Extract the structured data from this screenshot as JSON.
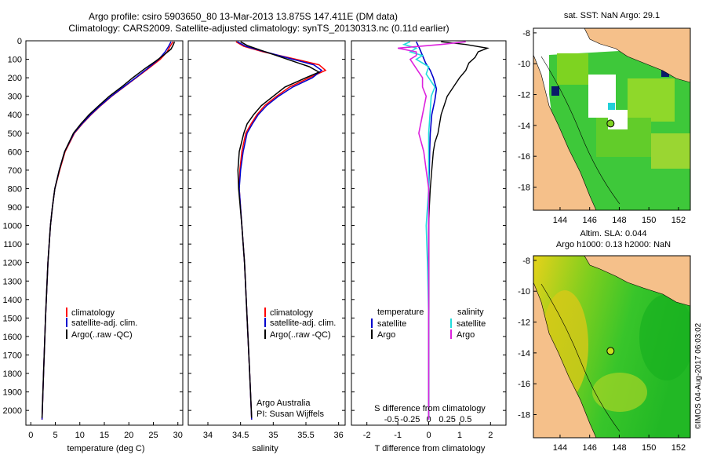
{
  "header": {
    "title": "Argo profile: csiro 5903650_80 13-Mar-2013 13.875S 147.411E (DM data)",
    "subtitle": "Climatology: CARS2009. Satellite-adjusted climatology: synTS_20130313.nc (0.11d earlier)"
  },
  "colors": {
    "climatology": "#ff0000",
    "satellite": "#0000cc",
    "argo": "#000000",
    "salinity_sat": "#22dddd",
    "salinity_argo": "#dd22dd",
    "land": "#f5c08a"
  },
  "depth_axis": {
    "ticks": [
      "0",
      "100",
      "200",
      "300",
      "400",
      "500",
      "600",
      "700",
      "800",
      "900",
      "1000",
      "1100",
      "1200",
      "1300",
      "1400",
      "1500",
      "1600",
      "1700",
      "1800",
      "1900",
      "2000"
    ],
    "max": 2080
  },
  "chart_data": [
    {
      "type": "line",
      "id": "temperature",
      "xlabel": "temperature (deg C)",
      "xlim": [
        -1,
        31
      ],
      "xticks": [
        "0",
        "5",
        "10",
        "15",
        "20",
        "25",
        "30"
      ],
      "ylabel": "depth",
      "legend": [
        "climatology",
        "satellite-adj. clim.",
        "Argo(..raw -QC)"
      ],
      "series": [
        {
          "name": "climatology",
          "depth": [
            5,
            30,
            60,
            100,
            150,
            200,
            250,
            300,
            350,
            400,
            450,
            500,
            600,
            700,
            800,
            900,
            1000,
            1200,
            1500,
            1800,
            2050
          ],
          "values": [
            29.0,
            28.4,
            27.8,
            26.4,
            24.0,
            21.5,
            19.0,
            16.5,
            14.3,
            12.3,
            10.5,
            8.9,
            7.0,
            5.9,
            4.9,
            4.4,
            4.0,
            3.5,
            3.0,
            2.6,
            2.3
          ]
        },
        {
          "name": "satellite-adj. clim.",
          "depth": [
            5,
            30,
            60,
            100,
            150,
            200,
            250,
            300,
            350,
            400,
            450,
            500,
            600,
            700,
            800,
            900,
            1000,
            1200,
            1500,
            1800,
            2050
          ],
          "values": [
            28.6,
            28.1,
            27.4,
            26.1,
            23.8,
            21.4,
            18.9,
            16.4,
            14.2,
            12.2,
            10.4,
            8.8,
            6.9,
            5.8,
            4.9,
            4.4,
            4.0,
            3.5,
            3.0,
            2.6,
            2.3
          ]
        },
        {
          "name": "Argo(..raw -QC)",
          "depth": [
            5,
            20,
            45,
            80,
            110,
            150,
            200,
            250,
            300,
            350,
            400,
            450,
            500,
            600,
            700,
            800,
            900,
            1000,
            1200,
            1500,
            1800,
            2040
          ],
          "values": [
            29.3,
            29.1,
            28.6,
            27.0,
            25.5,
            23.3,
            20.8,
            18.5,
            16.0,
            13.9,
            11.9,
            10.2,
            8.7,
            6.9,
            5.8,
            4.9,
            4.4,
            4.0,
            3.5,
            3.0,
            2.6,
            2.3
          ]
        }
      ]
    },
    {
      "type": "line",
      "id": "salinity",
      "xlabel": "salinity",
      "xlim": [
        33.7,
        36.1
      ],
      "xticks": [
        "34",
        "34.5",
        "35",
        "35.5",
        "36"
      ],
      "legend": [
        "climatology",
        "satellite-adj. clim.",
        "Argo(..raw -QC)"
      ],
      "series": [
        {
          "name": "climatology",
          "depth": [
            5,
            30,
            60,
            100,
            130,
            160,
            200,
            250,
            300,
            350,
            400,
            450,
            500,
            600,
            700,
            800,
            1000,
            1200,
            1500,
            1800,
            2050
          ],
          "values": [
            34.43,
            34.55,
            34.85,
            35.35,
            35.7,
            35.8,
            35.55,
            35.25,
            35.05,
            34.87,
            34.75,
            34.66,
            34.58,
            34.52,
            34.49,
            34.48,
            34.52,
            34.56,
            34.6,
            34.64,
            34.67
          ]
        },
        {
          "name": "satellite-adj. clim.",
          "depth": [
            5,
            30,
            60,
            100,
            130,
            160,
            200,
            250,
            300,
            350,
            400,
            450,
            500,
            600,
            700,
            800,
            1000,
            1200,
            1500,
            1800,
            2050
          ],
          "values": [
            34.45,
            34.58,
            34.88,
            35.3,
            35.62,
            35.74,
            35.6,
            35.3,
            35.08,
            34.9,
            34.77,
            34.68,
            34.6,
            34.54,
            34.5,
            34.48,
            34.52,
            34.56,
            34.6,
            34.64,
            34.67
          ]
        },
        {
          "name": "Argo(..raw -QC)",
          "depth": [
            5,
            25,
            50,
            80,
            110,
            140,
            170,
            200,
            250,
            300,
            350,
            400,
            450,
            500,
            600,
            700,
            800,
            1000,
            1200,
            1500,
            1800,
            2040
          ],
          "values": [
            34.5,
            34.6,
            34.8,
            35.05,
            35.3,
            35.55,
            35.7,
            35.5,
            35.18,
            35.0,
            34.82,
            34.7,
            34.6,
            34.55,
            34.48,
            34.46,
            34.47,
            34.52,
            34.56,
            34.6,
            34.64,
            34.67
          ]
        }
      ],
      "annotation": {
        "line1": "Argo Australia",
        "line2": "PI: Susan Wijffels"
      }
    },
    {
      "type": "line",
      "id": "differences",
      "xlabel": "T difference from climatology",
      "xlabel_top": "S difference from climatology",
      "xlim": [
        -2.5,
        2.5
      ],
      "xticks_T": [
        "-2",
        "-1",
        "0",
        "1",
        "2"
      ],
      "xticks_S": [
        "-0.5",
        "-0.25",
        "0",
        "0.25",
        "0.5"
      ],
      "legend_temperature": {
        "heading": "temperature",
        "satellite": "satellite",
        "argo": "Argo"
      },
      "legend_salinity": {
        "heading": "salinity",
        "satellite": "satellite",
        "argo": "Argo"
      },
      "series": [
        {
          "name": "T satellite",
          "depth": [
            5,
            40,
            80,
            120,
            160,
            200,
            260,
            320,
            400,
            500,
            600,
            700,
            800,
            1000,
            1200,
            1500,
            2050
          ],
          "values": [
            -0.4,
            -0.3,
            -0.2,
            -0.1,
            0.05,
            0.15,
            0.25,
            0.2,
            0.1,
            0.05,
            0.03,
            0.02,
            0.0,
            0.0,
            0.0,
            0.0,
            0.0
          ]
        },
        {
          "name": "T Argo",
          "depth": [
            5,
            20,
            40,
            60,
            90,
            120,
            160,
            200,
            250,
            300,
            350,
            400,
            450,
            500,
            550,
            600,
            700,
            800,
            900,
            1000,
            1200,
            1500,
            1800,
            2040
          ],
          "values": [
            0.4,
            1.2,
            1.9,
            1.6,
            1.5,
            1.3,
            1.2,
            1.0,
            0.8,
            0.6,
            0.5,
            0.4,
            0.35,
            0.3,
            0.2,
            0.15,
            0.1,
            0.05,
            0.02,
            0.0,
            0.0,
            0.0,
            0.0,
            0.0
          ]
        },
        {
          "name": "S satellite",
          "depth": [
            5,
            20,
            40,
            60,
            80,
            100,
            140,
            180,
            250,
            300,
            400,
            500,
            600,
            700,
            800,
            1000,
            1200,
            1500,
            1800,
            2050
          ],
          "values": [
            -0.15,
            -0.2,
            -0.1,
            -0.15,
            -0.05,
            -0.1,
            0.0,
            -0.02,
            0.05,
            0.02,
            0.01,
            0.0,
            0.0,
            0.0,
            0.0,
            -0.02,
            -0.01,
            0.0,
            0.0,
            0.0
          ]
        },
        {
          "name": "S Argo",
          "depth": [
            5,
            20,
            40,
            60,
            80,
            100,
            150,
            200,
            250,
            300,
            400,
            500,
            600,
            700,
            800,
            1000,
            1200,
            1500,
            1800,
            2050
          ],
          "values": [
            0.3,
            0.1,
            -0.25,
            -0.1,
            -0.1,
            -0.15,
            -0.1,
            -0.05,
            -0.05,
            -0.02,
            -0.05,
            -0.08,
            -0.04,
            -0.02,
            0.0,
            0.0,
            0.0,
            0.0,
            0.0,
            0.0
          ]
        }
      ]
    }
  ],
  "maps": {
    "sst": {
      "title": "sat. SST: NaN Argo: 29.1",
      "lon_ticks": [
        "144",
        "146",
        "148",
        "150",
        "152"
      ],
      "lat_ticks": [
        "-8",
        "-10",
        "-12",
        "-14",
        "-16",
        "-18"
      ],
      "argo_lon": 147.411,
      "argo_lat": -13.875,
      "lon_range": [
        142.2,
        152.8
      ],
      "lat_range": [
        -19.5,
        -7.7
      ]
    },
    "sla": {
      "title_line1": "Altim. SLA: 0.044",
      "title_line2": "Argo h1000: 0.13 h2000: NaN",
      "lon_ticks": [
        "144",
        "146",
        "148",
        "150",
        "152"
      ],
      "lat_ticks": [
        "-8",
        "-10",
        "-12",
        "-14",
        "-16",
        "-18"
      ],
      "argo_lon": 147.411,
      "argo_lat": -13.875,
      "lon_range": [
        142.2,
        152.8
      ],
      "lat_range": [
        -19.5,
        -7.7
      ]
    }
  },
  "footer": {
    "stamp": "©IMOS 04-Aug-2017 06:03:02"
  }
}
